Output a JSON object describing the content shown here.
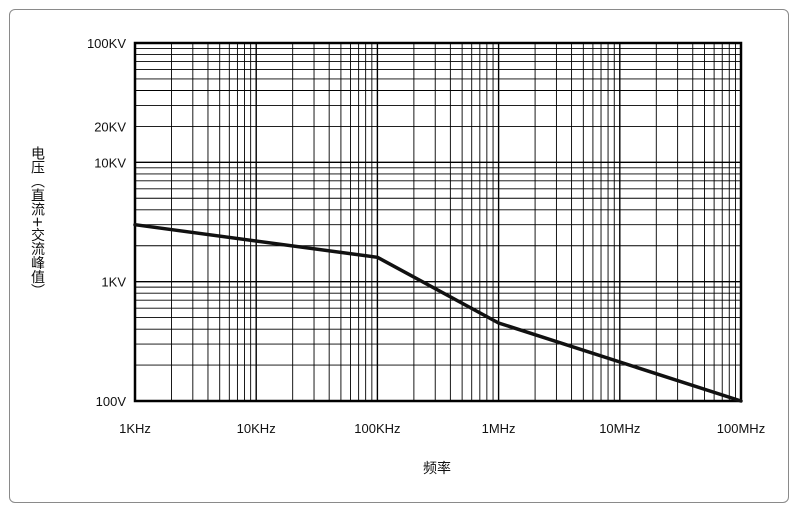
{
  "chart_data": {
    "type": "line",
    "title": "",
    "xlabel": "频率",
    "ylabel": "电压（直流+交流峰值）",
    "x_scale": "log",
    "y_scale": "log",
    "xlim": [
      1000,
      100000000
    ],
    "ylim": [
      100,
      100000
    ],
    "grid": true,
    "x_ticks": [
      {
        "value": 1000,
        "label": "1KHz"
      },
      {
        "value": 10000,
        "label": "10KHz"
      },
      {
        "value": 100000,
        "label": "100KHz"
      },
      {
        "value": 1000000,
        "label": "1MHz"
      },
      {
        "value": 10000000,
        "label": "10MHz"
      },
      {
        "value": 100000000,
        "label": "100MHz"
      }
    ],
    "y_ticks": [
      {
        "value": 100,
        "label": "100V"
      },
      {
        "value": 1000,
        "label": "1KV"
      },
      {
        "value": 10000,
        "label": "10KV"
      },
      {
        "value": 20000,
        "label": "20KV"
      },
      {
        "value": 100000,
        "label": "100KV"
      }
    ],
    "series": [
      {
        "x": [
          1000,
          100000,
          1000000,
          100000000
        ],
        "y": [
          3000,
          1600,
          450,
          100
        ]
      }
    ]
  },
  "colors": {
    "grid": "#000000",
    "line": "#111111"
  }
}
